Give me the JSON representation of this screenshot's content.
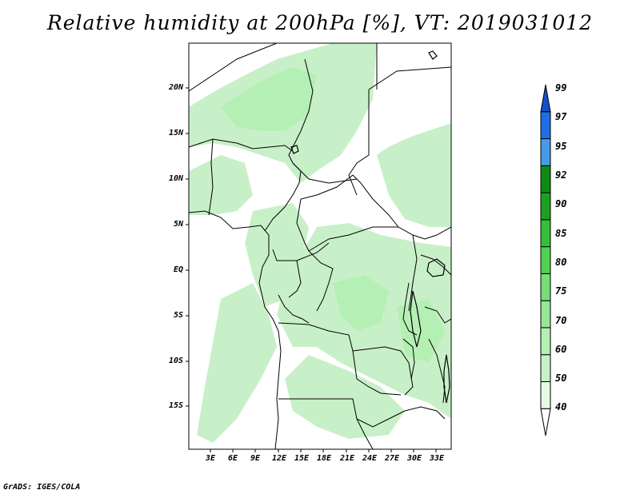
{
  "title": "Relative humidity at 200hPa [%], VT: 2019031012",
  "credit": "GrADS: IGES/COLA",
  "lat_labels": [
    "20N",
    "15N",
    "10N",
    "5N",
    "EQ",
    "5S",
    "10S",
    "15S"
  ],
  "lon_labels": [
    "3E",
    "6E",
    "9E",
    "12E",
    "15E",
    "18E",
    "21E",
    "24E",
    "27E",
    "30E",
    "33E"
  ],
  "colorbar": {
    "levels": [
      "40",
      "50",
      "60",
      "70",
      "75",
      "80",
      "85",
      "90",
      "92",
      "95",
      "97",
      "99"
    ],
    "colors": [
      "#ffffff",
      "#e6fae6",
      "#c8f0c8",
      "#b4f0b4",
      "#96e696",
      "#78dc78",
      "#50d250",
      "#37be37",
      "#1ea01e",
      "#0f8c0f",
      "#469be6",
      "#1e6ee6",
      "#1450c8"
    ]
  },
  "colors": {
    "land_edge": "#000000",
    "moist_light": "#c8f0c8",
    "moist_mid": "#b4f0b4"
  }
}
